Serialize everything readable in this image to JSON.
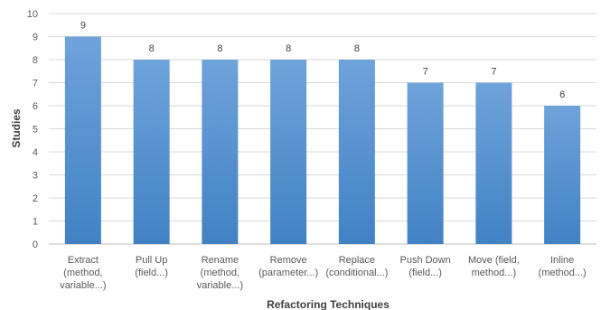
{
  "chart_data": {
    "type": "bar",
    "title": "",
    "xlabel": "Refactoring Techniques",
    "ylabel": "Studies",
    "ylim": [
      0,
      10
    ],
    "yticks": [
      0,
      1,
      2,
      3,
      4,
      5,
      6,
      7,
      8,
      9,
      10
    ],
    "grid": true,
    "legend": "none",
    "categories": [
      [
        "Extract",
        "(method,",
        "variable...)"
      ],
      [
        "Pull Up",
        "(field...)"
      ],
      [
        "Rename",
        "(method,",
        "variable...)"
      ],
      [
        "Remove",
        "(parameter...)"
      ],
      [
        "Replace",
        "(conditional...)"
      ],
      [
        "Push Down",
        "(field...)"
      ],
      [
        "Move (field,",
        "method...)"
      ],
      [
        "Inline",
        "(method...)"
      ]
    ],
    "values": [
      9,
      8,
      8,
      8,
      8,
      7,
      7,
      6
    ],
    "colors": {
      "bar_top": "#6fa3db",
      "bar_bottom": "#4182c4"
    }
  }
}
